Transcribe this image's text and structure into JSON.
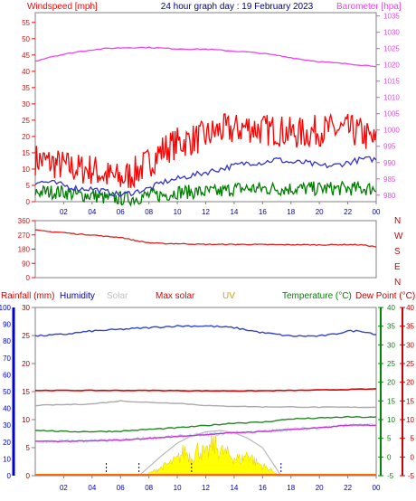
{
  "header": {
    "windspeed_label": "Windspeed [mph]",
    "title": "24 hour graph day : 19 February 2023",
    "barometer_label": "Barometer [hpa]"
  },
  "legend2": {
    "rainfall": "Rainfall (mm)",
    "humidity": "Humidity",
    "solar": "Solar",
    "max_solar": "Max solar",
    "uv": "UV",
    "temperature": "Temperature (°C)",
    "dew_point": "Dew Point (°C)"
  },
  "colors": {
    "wind_gust": "#ff0000",
    "wind_avg": "#3333cc",
    "wind_min": "#008000",
    "barometer": "#ee44ee",
    "direction": "#dd2222",
    "humidity": "#3344cc",
    "temperature": "#228822",
    "dew_point": "#cc33cc",
    "max_solar_line": "#dd0000",
    "solar_line": "#aaaaaa",
    "uv_text": "#d4a000",
    "solar_fill": "#ffff00",
    "rain_axis": "#0000cc",
    "temp_axis": "#008800",
    "dew_axis": "#cc0000"
  },
  "x_axis": {
    "ticks": [
      "02",
      "04",
      "06",
      "08",
      "10",
      "12",
      "14",
      "16",
      "18",
      "20",
      "22",
      "00"
    ]
  },
  "chart_data": [
    {
      "type": "line",
      "panel": "wind-barometer",
      "title": "24 hour graph day : 19 February 2023",
      "x_unit": "hour",
      "y_left": {
        "label": "Windspeed [mph]",
        "ticks": [
          0,
          5,
          10,
          15,
          20,
          25,
          30,
          35,
          40,
          45,
          50,
          55
        ],
        "range": [
          0,
          58
        ]
      },
      "y_right": {
        "label": "Barometer [hpa]",
        "ticks": [
          980,
          985,
          990,
          995,
          1000,
          1005,
          1010,
          1015,
          1020,
          1025,
          1030,
          1035
        ],
        "range": [
          978,
          1036
        ]
      },
      "series": [
        {
          "name": "gust",
          "axis": "left",
          "x": [
            0,
            1,
            2,
            3,
            4,
            5,
            6,
            7,
            8,
            9,
            10,
            11,
            12,
            13,
            14,
            15,
            16,
            17,
            18,
            19,
            20,
            21,
            22,
            23,
            24
          ],
          "values": [
            13,
            12,
            11,
            10,
            10,
            8,
            7,
            9,
            12,
            16,
            18,
            19,
            20,
            22,
            22,
            23,
            22,
            22,
            21,
            21,
            22,
            22,
            22,
            21,
            18
          ]
        },
        {
          "name": "average",
          "axis": "left",
          "x": [
            0,
            1,
            2,
            3,
            4,
            5,
            6,
            7,
            8,
            9,
            10,
            11,
            12,
            13,
            14,
            15,
            16,
            17,
            18,
            19,
            20,
            21,
            22,
            23,
            24
          ],
          "values": [
            6,
            6,
            5,
            4,
            4,
            3,
            2,
            3,
            4,
            6,
            7,
            8,
            9,
            10,
            11,
            12,
            12,
            13,
            12,
            12,
            11,
            11,
            12,
            13,
            13
          ]
        },
        {
          "name": "lowest",
          "axis": "left",
          "x": [
            0,
            1,
            2,
            3,
            4,
            5,
            6,
            7,
            8,
            9,
            10,
            11,
            12,
            13,
            14,
            15,
            16,
            17,
            18,
            19,
            20,
            21,
            22,
            23,
            24
          ],
          "values": [
            3,
            3,
            3,
            2,
            2,
            1,
            1,
            1,
            2,
            2,
            3,
            3,
            3,
            3,
            4,
            4,
            4,
            4,
            4,
            4,
            4,
            4,
            4,
            4,
            4
          ]
        },
        {
          "name": "barometer",
          "axis": "right",
          "x": [
            0,
            1,
            2,
            3,
            4,
            5,
            6,
            7,
            8,
            9,
            10,
            11,
            12,
            13,
            14,
            15,
            16,
            17,
            18,
            19,
            20,
            21,
            22,
            23,
            24
          ],
          "values": [
            1021.1,
            1022.4,
            1023.2,
            1024,
            1024.6,
            1025,
            1025.2,
            1025.3,
            1025.3,
            1025.1,
            1024.9,
            1024.8,
            1024.8,
            1024.5,
            1024.2,
            1023.9,
            1023.5,
            1022.9,
            1022.2,
            1021.5,
            1021,
            1020.6,
            1020.3,
            1019.9,
            1019.6
          ]
        }
      ]
    },
    {
      "type": "line",
      "panel": "wind-direction",
      "x_unit": "hour",
      "y": {
        "ticks": [
          0,
          90,
          180,
          270,
          360
        ],
        "range": [
          0,
          360
        ]
      },
      "compass_labels": [
        "N",
        "W",
        "S",
        "E",
        "N"
      ],
      "series": [
        {
          "name": "direction",
          "x": [
            0,
            1,
            2,
            3,
            4,
            5,
            6,
            7,
            8,
            9,
            10,
            11,
            12,
            13,
            14,
            15,
            16,
            17,
            18,
            19,
            20,
            21,
            22,
            23,
            24
          ],
          "values": [
            300,
            290,
            285,
            275,
            270,
            260,
            255,
            235,
            220,
            215,
            215,
            212,
            210,
            210,
            210,
            210,
            209,
            208,
            208,
            208,
            207,
            208,
            209,
            207,
            195
          ]
        }
      ]
    },
    {
      "type": "line",
      "panel": "temperature-humidity-solar",
      "x_unit": "hour",
      "y_rain": {
        "label": "Rainfall (mm)",
        "ticks": [
          0,
          10,
          20,
          30,
          40,
          50,
          60,
          70,
          80,
          90,
          100
        ],
        "range": [
          0,
          100
        ]
      },
      "y_humidity": {
        "label": "Humidity",
        "ticks": [
          0,
          5,
          10,
          15,
          20,
          25,
          30
        ],
        "range": [
          0,
          30
        ]
      },
      "y_temperature": {
        "label": "Temperature (°C)",
        "ticks": [
          -5,
          0,
          5,
          10,
          15,
          20,
          25,
          30,
          35,
          40
        ],
        "range": [
          -5,
          40
        ]
      },
      "y_dew": {
        "label": "Dew Point (°C)",
        "ticks": [
          -5,
          0,
          5,
          10,
          15,
          20,
          25,
          30,
          35,
          40
        ],
        "range": [
          -5,
          40
        ]
      },
      "series": [
        {
          "name": "Humidity",
          "x": [
            0,
            2,
            4,
            6,
            8,
            10,
            12,
            14,
            16,
            18,
            20,
            21,
            22,
            23,
            24
          ],
          "values": [
            83,
            84,
            86,
            87,
            88,
            89,
            89,
            88,
            85,
            83,
            83,
            84,
            86,
            86,
            84
          ]
        },
        {
          "name": "Max solar",
          "x": [
            0,
            4,
            8,
            12,
            16,
            20,
            24
          ],
          "values": [
            17.8,
            17.8,
            17.8,
            17.7,
            17.7,
            17.9,
            18.2
          ]
        },
        {
          "name": "Solar",
          "x": [
            0,
            4,
            6,
            8,
            10,
            12,
            13,
            14,
            16,
            18,
            20,
            22,
            24
          ],
          "values": [
            13.8,
            14.2,
            15.0,
            14.6,
            14.4,
            13.8,
            13.6,
            13.6,
            13.4,
            13.4,
            13.3,
            13.3,
            13.3
          ]
        },
        {
          "name": "Temperature (°C)",
          "x": [
            0,
            2,
            4,
            6,
            8,
            10,
            12,
            14,
            16,
            18,
            20,
            22,
            24
          ],
          "values": [
            7.2,
            6.8,
            6.8,
            6.9,
            7.4,
            7.8,
            8.4,
            9.1,
            9.3,
            10.2,
            10.4,
            10.7,
            10.6
          ]
        },
        {
          "name": "Dew Point (°C)",
          "x": [
            0,
            2,
            4,
            6,
            8,
            10,
            12,
            14,
            16,
            18,
            20,
            22,
            24
          ],
          "values": [
            4.2,
            4.2,
            4.3,
            4.5,
            5.0,
            5.5,
            6.0,
            6.5,
            6.8,
            7.4,
            7.8,
            8.5,
            8.5
          ]
        },
        {
          "name": "Rainfall (mm)",
          "x": [
            0,
            24
          ],
          "values": [
            0.2,
            0.2
          ]
        }
      ],
      "solar_curve": {
        "x": [
          7.3,
          9,
          10,
          11,
          12,
          13,
          14,
          15,
          16,
          17.3
        ],
        "values": [
          0,
          47,
          72,
          88,
          97,
          100,
          95,
          82,
          62,
          0
        ]
      },
      "solar_actual": {
        "x": [
          8,
          9,
          10,
          10.5,
          11,
          11.5,
          12,
          12.5,
          13,
          13.5,
          14,
          14.5,
          15,
          15.5,
          16,
          17
        ],
        "values": [
          5,
          20,
          35,
          55,
          40,
          60,
          45,
          70,
          55,
          48,
          40,
          35,
          50,
          30,
          22,
          6
        ]
      },
      "markers_x": [
        5,
        7.3,
        11,
        17.3
      ]
    }
  ]
}
